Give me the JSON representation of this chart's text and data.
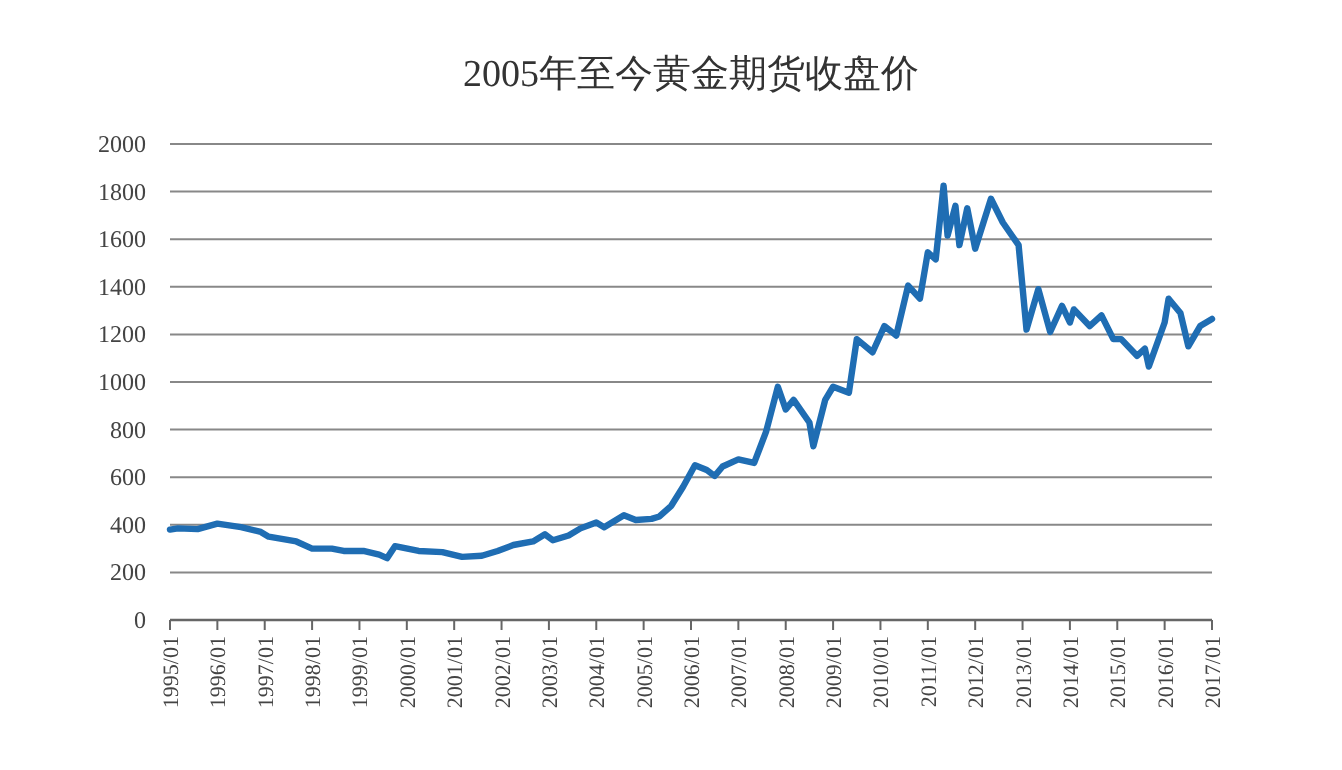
{
  "chart_data": {
    "type": "line",
    "title": "2005年至今黄金期货收盘价",
    "x": [
      "1995-01",
      "1995-03",
      "1995-08",
      "1996-01",
      "1996-07",
      "1996-12",
      "1997-02",
      "1997-09",
      "1998-01",
      "1998-06",
      "1998-09",
      "1999-02",
      "1999-06",
      "1999-08",
      "1999-10",
      "2000-04",
      "2000-10",
      "2001-03",
      "2001-08",
      "2001-12",
      "2002-04",
      "2002-09",
      "2002-12",
      "2003-02",
      "2003-06",
      "2003-09",
      "2004-01",
      "2004-03",
      "2004-08",
      "2004-11",
      "2005-03",
      "2005-05",
      "2005-08",
      "2005-11",
      "2006-02",
      "2006-05",
      "2006-07",
      "2006-09",
      "2007-01",
      "2007-05",
      "2007-08",
      "2007-11",
      "2008-01",
      "2008-03",
      "2008-07",
      "2008-08",
      "2008-11",
      "2009-01",
      "2009-05",
      "2009-07",
      "2009-11",
      "2010-02",
      "2010-05",
      "2010-08",
      "2010-11",
      "2011-01",
      "2011-03",
      "2011-05",
      "2011-06",
      "2011-08",
      "2011-09",
      "2011-11",
      "2012-01",
      "2012-05",
      "2012-08",
      "2012-12",
      "2013-02",
      "2013-05",
      "2013-08",
      "2013-11",
      "2014-01",
      "2014-02",
      "2014-06",
      "2014-09",
      "2014-12",
      "2015-02",
      "2015-06",
      "2015-08",
      "2015-09",
      "2016-01",
      "2016-02",
      "2016-05",
      "2016-07",
      "2016-10",
      "2017-01"
    ],
    "series": [
      {
        "color": "#1f6db3",
        "values": [
          380,
          385,
          382,
          405,
          390,
          370,
          350,
          330,
          300,
          300,
          290,
          290,
          275,
          260,
          310,
          290,
          285,
          265,
          270,
          290,
          315,
          330,
          360,
          335,
          355,
          385,
          410,
          390,
          440,
          420,
          425,
          435,
          480,
          560,
          650,
          630,
          605,
          645,
          675,
          660,
          790,
          980,
          885,
          925,
          830,
          730,
          925,
          980,
          955,
          1180,
          1125,
          1235,
          1195,
          1405,
          1350,
          1545,
          1515,
          1825,
          1615,
          1740,
          1575,
          1730,
          1560,
          1770,
          1670,
          1575,
          1220,
          1390,
          1210,
          1320,
          1250,
          1305,
          1235,
          1280,
          1180,
          1180,
          1110,
          1140,
          1065,
          1250,
          1350,
          1290,
          1150,
          1235,
          1265
        ]
      }
    ],
    "xlim": [
      "1995-01",
      "2017-01"
    ],
    "xticks": [
      {
        "value": "1995-01",
        "label": "1995/01"
      },
      {
        "value": "1996-01",
        "label": "1996/01"
      },
      {
        "value": "1997-01",
        "label": "1997/01"
      },
      {
        "value": "1998-01",
        "label": "1998/01"
      },
      {
        "value": "1999-01",
        "label": "1999/01"
      },
      {
        "value": "2000-01",
        "label": "2000/01"
      },
      {
        "value": "2001-01",
        "label": "2001/01"
      },
      {
        "value": "2002-01",
        "label": "2002/01"
      },
      {
        "value": "2003-01",
        "label": "2003/01"
      },
      {
        "value": "2004-01",
        "label": "2004/01"
      },
      {
        "value": "2005-01",
        "label": "2005/01"
      },
      {
        "value": "2006-01",
        "label": "2006/01"
      },
      {
        "value": "2007-01",
        "label": "2007/01"
      },
      {
        "value": "2008-01",
        "label": "2008/01"
      },
      {
        "value": "2009-01",
        "label": "2009/01"
      },
      {
        "value": "2010-01",
        "label": "2010/01"
      },
      {
        "value": "2011-01",
        "label": "2011/01"
      },
      {
        "value": "2012-01",
        "label": "2012/01"
      },
      {
        "value": "2013-01",
        "label": "2013/01"
      },
      {
        "value": "2014-01",
        "label": "2014/01"
      },
      {
        "value": "2015-01",
        "label": "2015/01"
      },
      {
        "value": "2016-01",
        "label": "2016/01"
      },
      {
        "value": "2017-01",
        "label": "2017/01"
      }
    ],
    "ylim": [
      0,
      2000
    ],
    "yticks": [
      0,
      200,
      400,
      600,
      800,
      1000,
      1200,
      1400,
      1600,
      1800,
      2000
    ],
    "grid": "y",
    "marker": "none",
    "line_style": "solid"
  }
}
